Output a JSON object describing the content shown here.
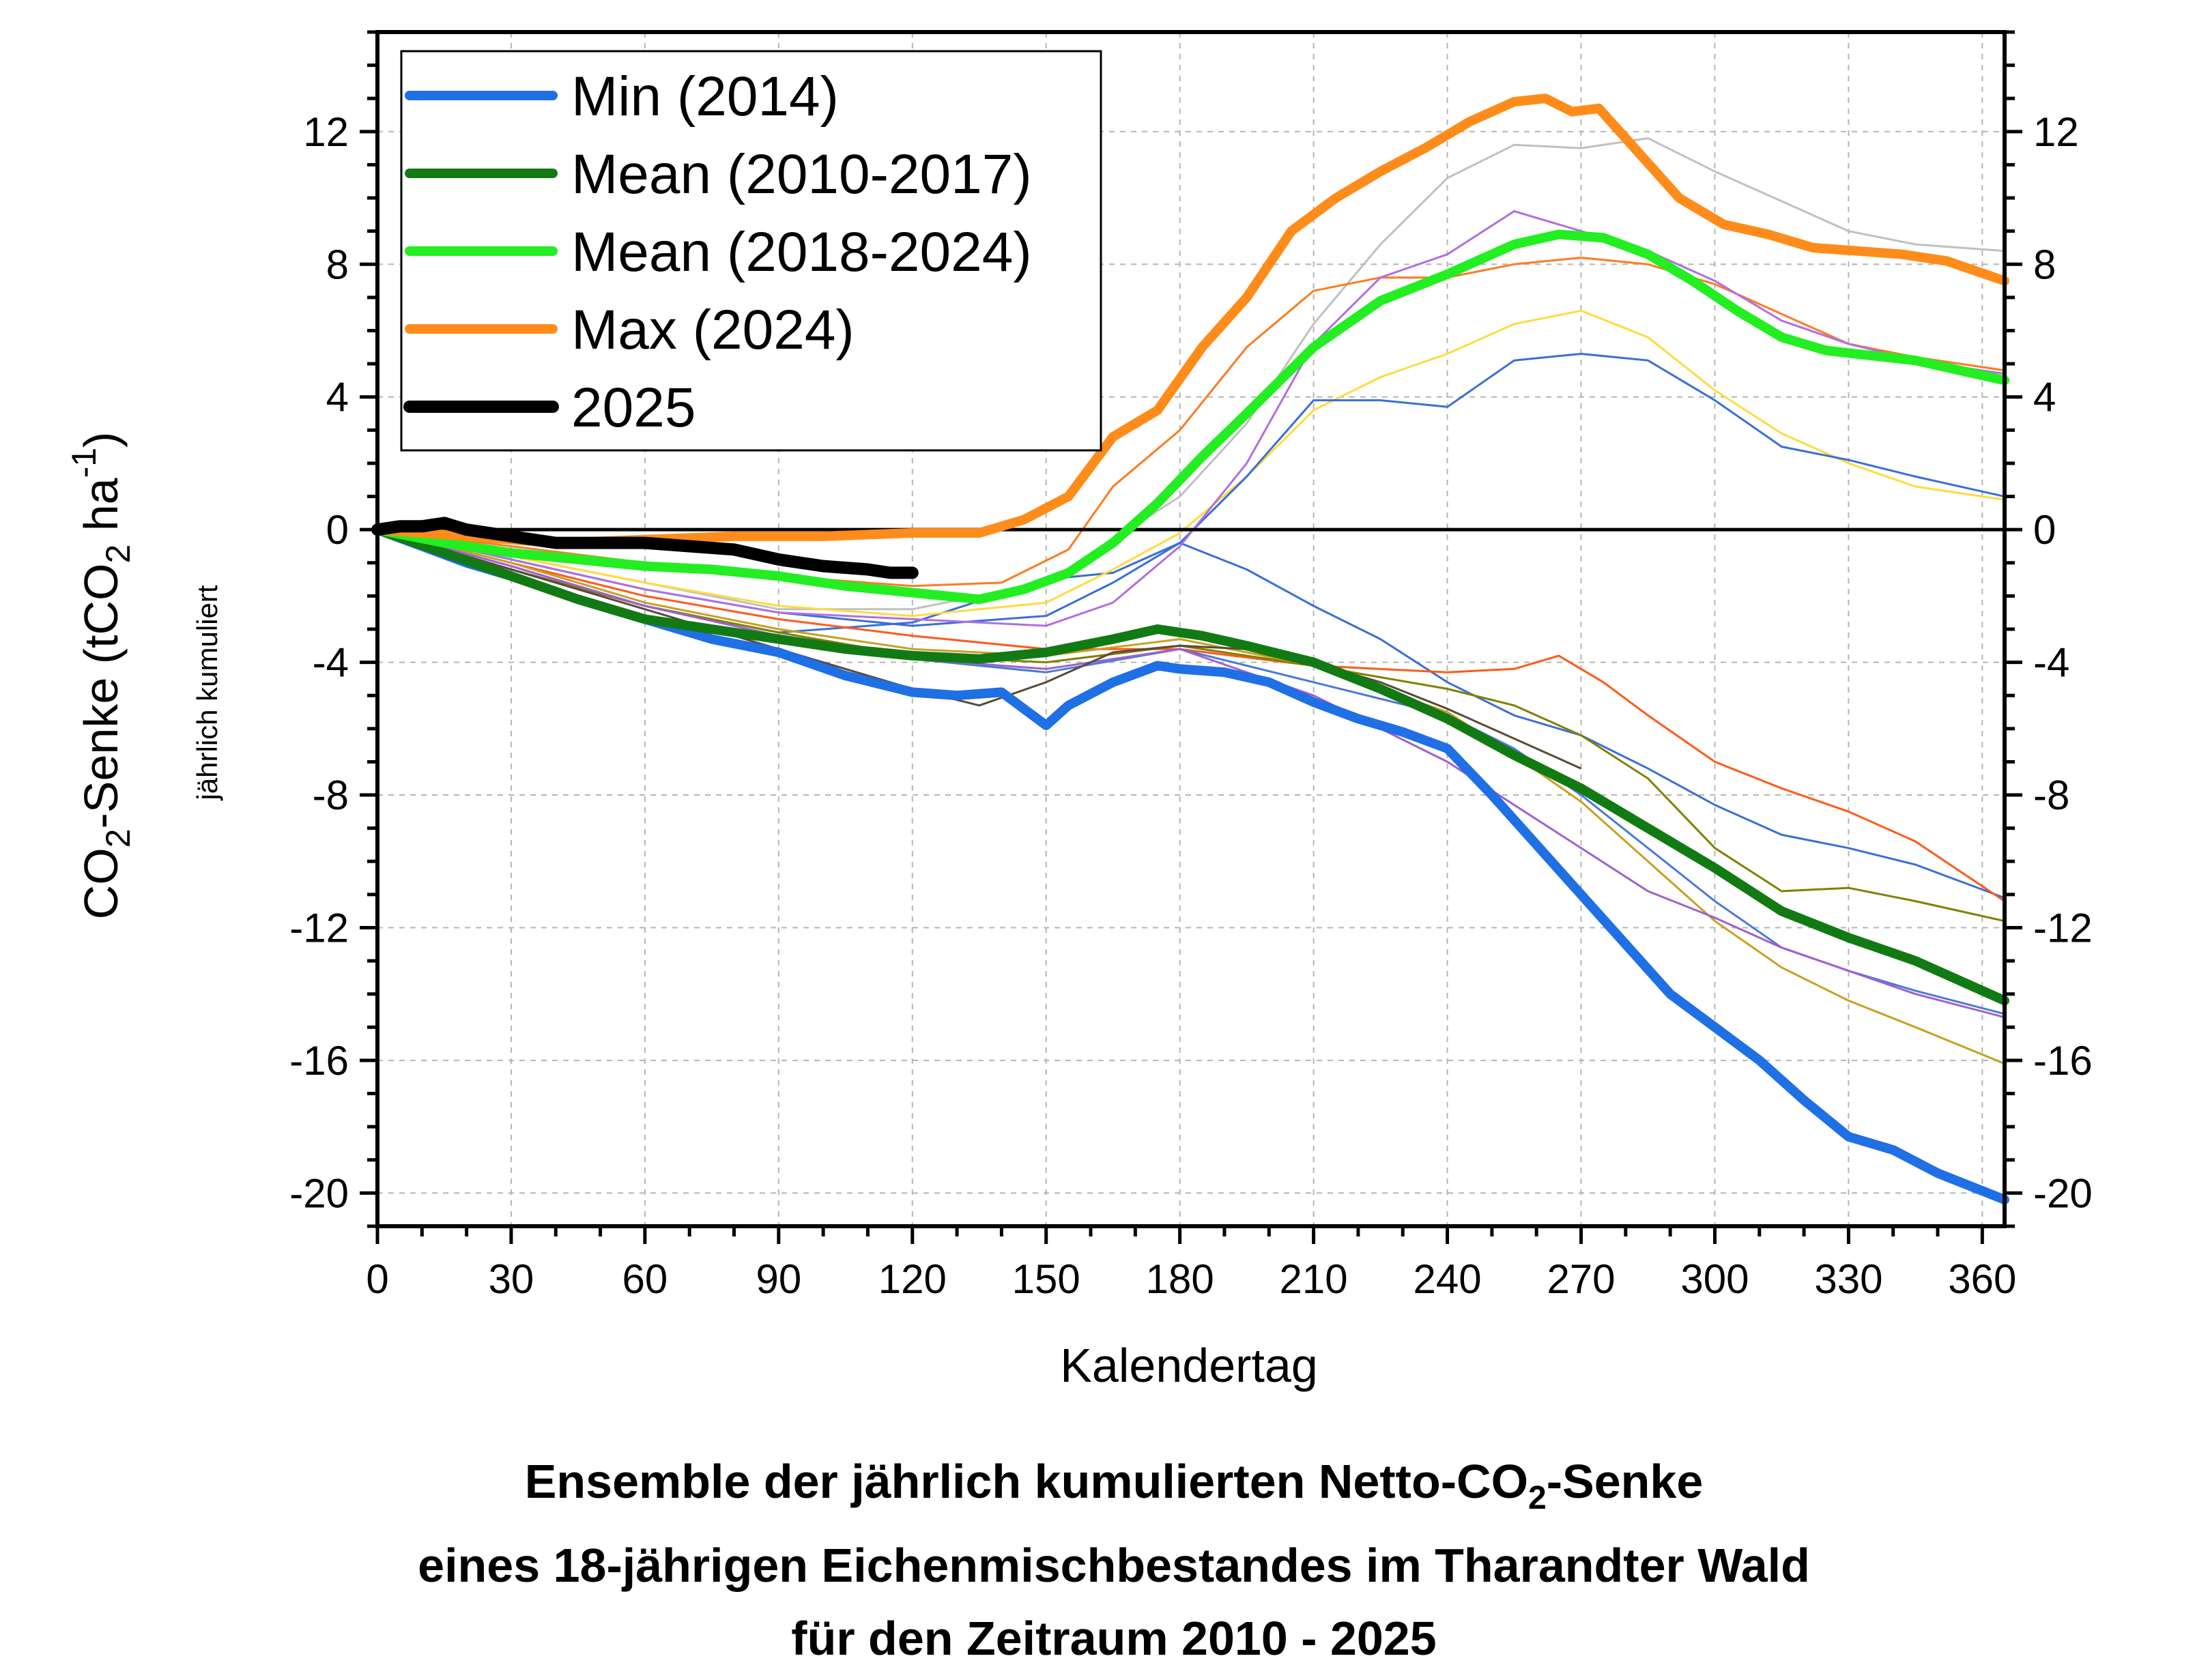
{
  "chart_data": {
    "type": "line",
    "xlabel": "Kalendertag",
    "ylabel": {
      "main": "CO",
      "sub": "2",
      "rest": "-Senke (tCO",
      "sub2": "2",
      "unit": " ha",
      "sup": "-1",
      "close": ")"
    },
    "ylabel_secondary": "jährlich kumuliert",
    "xlim": [
      0,
      365
    ],
    "ylim": [
      -21,
      15
    ],
    "xticks": [
      0,
      30,
      60,
      90,
      120,
      150,
      180,
      210,
      240,
      270,
      300,
      330,
      360
    ],
    "yticks": [
      -20,
      -16,
      -12,
      -8,
      -4,
      0,
      4,
      8,
      12
    ],
    "grid": true,
    "legend_position": "top-left",
    "caption": {
      "line1_a": "Ensemble der jährlich kumulierten Netto-CO",
      "line1_sub": "2",
      "line1_b": "-Senke",
      "line2": "eines 18-jährigen Eichenmischbestandes im Tharandter Wald",
      "line3": "für den Zeitraum 2010 - 2025"
    },
    "series": [
      {
        "name": "Min (2014)",
        "color": "#1f6fe5",
        "width": 14,
        "x": [
          0,
          10,
          20,
          30,
          45,
          60,
          75,
          90,
          105,
          120,
          130,
          140,
          150,
          155,
          165,
          175,
          180,
          190,
          200,
          210,
          220,
          230,
          240,
          250,
          260,
          270,
          280,
          290,
          300,
          310,
          320,
          330,
          340,
          350,
          365
        ],
        "y": [
          0,
          -0.5,
          -1,
          -1.4,
          -2.1,
          -2.7,
          -3.3,
          -3.7,
          -4.4,
          -4.9,
          -5,
          -4.9,
          -5.9,
          -5.3,
          -4.6,
          -4.1,
          -4.2,
          -4.3,
          -4.6,
          -5.2,
          -5.7,
          -6.1,
          -6.6,
          -8,
          -9.5,
          -11,
          -12.5,
          -14,
          -15,
          -16,
          -17.2,
          -18.3,
          -18.7,
          -19.4,
          -20.2
        ]
      },
      {
        "name": "Mean (2010-2017)",
        "color": "#127a12",
        "width": 14,
        "x": [
          0,
          15,
          30,
          45,
          60,
          75,
          90,
          105,
          120,
          135,
          150,
          165,
          175,
          185,
          195,
          210,
          225,
          240,
          255,
          270,
          285,
          300,
          315,
          330,
          345,
          365
        ],
        "y": [
          0,
          -0.7,
          -1.4,
          -2.1,
          -2.7,
          -3,
          -3.3,
          -3.6,
          -3.8,
          -3.9,
          -3.7,
          -3.3,
          -3,
          -3.2,
          -3.5,
          -4,
          -4.8,
          -5.7,
          -6.8,
          -7.8,
          -9,
          -10.2,
          -11.5,
          -12.3,
          -13,
          -14.2
        ]
      },
      {
        "name": "Mean (2018-2024)",
        "color": "#22ee22",
        "width": 14,
        "x": [
          0,
          15,
          30,
          45,
          60,
          75,
          90,
          105,
          120,
          135,
          145,
          155,
          165,
          175,
          185,
          195,
          210,
          225,
          240,
          255,
          265,
          275,
          285,
          295,
          305,
          315,
          325,
          345,
          365
        ],
        "y": [
          0,
          -0.4,
          -0.7,
          -0.9,
          -1.1,
          -1.2,
          -1.4,
          -1.7,
          -1.9,
          -2.1,
          -1.8,
          -1.3,
          -0.4,
          0.8,
          2.2,
          3.5,
          5.5,
          6.9,
          7.7,
          8.6,
          8.9,
          8.8,
          8.3,
          7.5,
          6.6,
          5.8,
          5.4,
          5.1,
          4.5
        ]
      },
      {
        "name": "Max (2024)",
        "color": "#ff8c1a",
        "width": 14,
        "x": [
          0,
          20,
          40,
          60,
          80,
          100,
          120,
          135,
          145,
          155,
          165,
          175,
          185,
          195,
          205,
          215,
          225,
          235,
          245,
          255,
          262,
          268,
          274,
          282,
          292,
          302,
          312,
          322,
          332,
          342,
          352,
          365
        ],
        "y": [
          0,
          -0.2,
          -0.4,
          -0.3,
          -0.2,
          -0.2,
          -0.1,
          -0.1,
          0.3,
          1,
          2.8,
          3.6,
          5.5,
          7,
          9,
          10,
          10.8,
          11.5,
          12.3,
          12.9,
          13,
          12.6,
          12.7,
          11.5,
          10,
          9.2,
          8.9,
          8.5,
          8.4,
          8.3,
          8.1,
          7.5
        ]
      },
      {
        "name": "2025",
        "color": "#000000",
        "width": 18,
        "x": [
          0,
          5,
          10,
          15,
          20,
          30,
          40,
          50,
          60,
          70,
          80,
          90,
          100,
          110,
          115,
          120
        ],
        "y": [
          0,
          0.1,
          0.1,
          0.2,
          0,
          -0.2,
          -0.4,
          -0.4,
          -0.4,
          -0.5,
          -0.6,
          -0.9,
          -1.1,
          -1.2,
          -1.3,
          -1.3
        ]
      }
    ],
    "thin_series": [
      {
        "color": "#3a6fd8",
        "x": [
          0,
          30,
          60,
          90,
          120,
          150,
          165,
          180,
          195,
          210,
          225,
          240,
          255,
          270,
          285,
          300,
          315,
          330,
          345,
          365
        ],
        "y": [
          0,
          -1.2,
          -2.3,
          -3.1,
          -2.8,
          -1.5,
          -1.3,
          -0.4,
          -1.2,
          -2.3,
          -3.3,
          -4.6,
          -5.6,
          -6.2,
          -7.2,
          -8.3,
          -9.2,
          -9.6,
          -10.1,
          -11.1
        ]
      },
      {
        "color": "#ff5a1a",
        "x": [
          0,
          30,
          60,
          90,
          120,
          150,
          180,
          210,
          240,
          255,
          265,
          275,
          285,
          300,
          315,
          330,
          345,
          365
        ],
        "y": [
          0,
          -1,
          -2,
          -2.7,
          -3.2,
          -3.6,
          -3.6,
          -4.1,
          -4.3,
          -4.2,
          -3.8,
          -4.6,
          -5.6,
          -7,
          -7.8,
          -8.5,
          -9.4,
          -11.2
        ]
      },
      {
        "color": "#808000",
        "x": [
          0,
          30,
          60,
          90,
          120,
          150,
          180,
          210,
          240,
          255,
          270,
          285,
          300,
          315,
          330,
          345,
          365
        ],
        "y": [
          0,
          -1.2,
          -2.3,
          -3.1,
          -3.8,
          -4,
          -3.5,
          -4.1,
          -4.8,
          -5.3,
          -6.2,
          -7.5,
          -9.6,
          -10.9,
          -10.8,
          -11.2,
          -11.8
        ]
      },
      {
        "color": "#c8a020",
        "x": [
          0,
          30,
          60,
          90,
          120,
          150,
          180,
          210,
          240,
          255,
          270,
          285,
          300,
          315,
          330,
          345,
          365
        ],
        "y": [
          0,
          -1,
          -2.2,
          -3,
          -3.6,
          -3.8,
          -3.3,
          -4.1,
          -5.5,
          -6.8,
          -8.2,
          -10,
          -11.8,
          -13.2,
          -14.2,
          -15,
          -16.1
        ]
      },
      {
        "color": "#4a7ad8",
        "x": [
          0,
          30,
          60,
          90,
          120,
          150,
          180,
          210,
          240,
          255,
          270,
          285,
          300,
          315,
          330,
          345,
          365
        ],
        "y": [
          0,
          -1.1,
          -2.3,
          -3.2,
          -3.9,
          -4.3,
          -3.6,
          -4.6,
          -5.6,
          -6.6,
          -8,
          -9.6,
          -11.2,
          -12.6,
          -13.3,
          -13.9,
          -14.6
        ]
      },
      {
        "color": "#a060d0",
        "x": [
          0,
          30,
          60,
          90,
          120,
          150,
          180,
          210,
          240,
          255,
          270,
          285,
          300,
          315,
          330,
          345,
          365
        ],
        "y": [
          0,
          -1.1,
          -2.3,
          -3.2,
          -3.9,
          -4.2,
          -3.6,
          -5,
          -7,
          -8.3,
          -9.6,
          -10.9,
          -11.7,
          -12.6,
          -13.3,
          -14,
          -14.7
        ]
      },
      {
        "color": "#5a4a3a",
        "x": [
          0,
          30,
          60,
          90,
          120,
          135,
          150,
          165,
          180,
          195,
          210,
          225,
          240,
          255,
          270
        ],
        "y": [
          0,
          -1.2,
          -2.4,
          -3.6,
          -4.8,
          -5.3,
          -4.6,
          -3.7,
          -3.5,
          -3.6,
          -4,
          -4.6,
          -5.4,
          -6.3,
          -7.2
        ]
      },
      {
        "color": "#c0c0c0",
        "x": [
          0,
          30,
          60,
          90,
          120,
          150,
          165,
          180,
          195,
          210,
          225,
          240,
          255,
          270,
          285,
          300,
          315,
          330,
          345,
          365
        ],
        "y": [
          0,
          -0.8,
          -1.6,
          -2.4,
          -2.4,
          -1.6,
          -0.3,
          1,
          3.2,
          6.2,
          8.6,
          10.6,
          11.6,
          11.5,
          11.8,
          10.8,
          9.9,
          9,
          8.6,
          8.4
        ]
      },
      {
        "color": "#ffdb40",
        "x": [
          0,
          30,
          60,
          90,
          120,
          150,
          165,
          180,
          195,
          210,
          225,
          240,
          255,
          270,
          285,
          300,
          315,
          330,
          345,
          365
        ],
        "y": [
          0,
          -0.8,
          -1.6,
          -2.3,
          -2.6,
          -2.2,
          -1.2,
          -0.1,
          1.6,
          3.6,
          4.6,
          5.3,
          6.2,
          6.6,
          5.8,
          4.2,
          2.9,
          2,
          1.3,
          0.9
        ]
      },
      {
        "color": "#3a6fd8",
        "x": [
          0,
          30,
          60,
          90,
          120,
          150,
          165,
          180,
          195,
          210,
          225,
          240,
          255,
          270,
          285,
          300,
          315,
          330,
          345,
          365
        ],
        "y": [
          0,
          -0.9,
          -1.8,
          -2.5,
          -2.9,
          -2.6,
          -1.6,
          -0.4,
          1.6,
          3.9,
          3.9,
          3.7,
          5.1,
          5.3,
          5.1,
          3.9,
          2.5,
          2.1,
          1.6,
          1
        ]
      },
      {
        "color": "#ff7a20",
        "x": [
          0,
          30,
          60,
          90,
          120,
          140,
          155,
          165,
          180,
          195,
          210,
          225,
          240,
          255,
          270,
          285,
          300,
          315,
          330,
          345,
          365
        ],
        "y": [
          0,
          -0.5,
          -1,
          -1.4,
          -1.7,
          -1.6,
          -0.6,
          1.3,
          3,
          5.5,
          7.2,
          7.6,
          7.6,
          8,
          8.2,
          8,
          7.4,
          6.5,
          5.6,
          5.2,
          4.8
        ]
      },
      {
        "color": "#b070e0",
        "x": [
          0,
          30,
          60,
          90,
          120,
          150,
          165,
          180,
          195,
          210,
          225,
          240,
          255,
          270,
          285,
          300,
          315,
          330,
          345,
          365
        ],
        "y": [
          0,
          -0.9,
          -1.8,
          -2.5,
          -2.7,
          -2.9,
          -2.2,
          -0.5,
          2,
          5.6,
          7.6,
          8.3,
          9.6,
          9,
          8.4,
          7.5,
          6.3,
          5.6,
          5.1,
          4.7
        ]
      }
    ]
  }
}
